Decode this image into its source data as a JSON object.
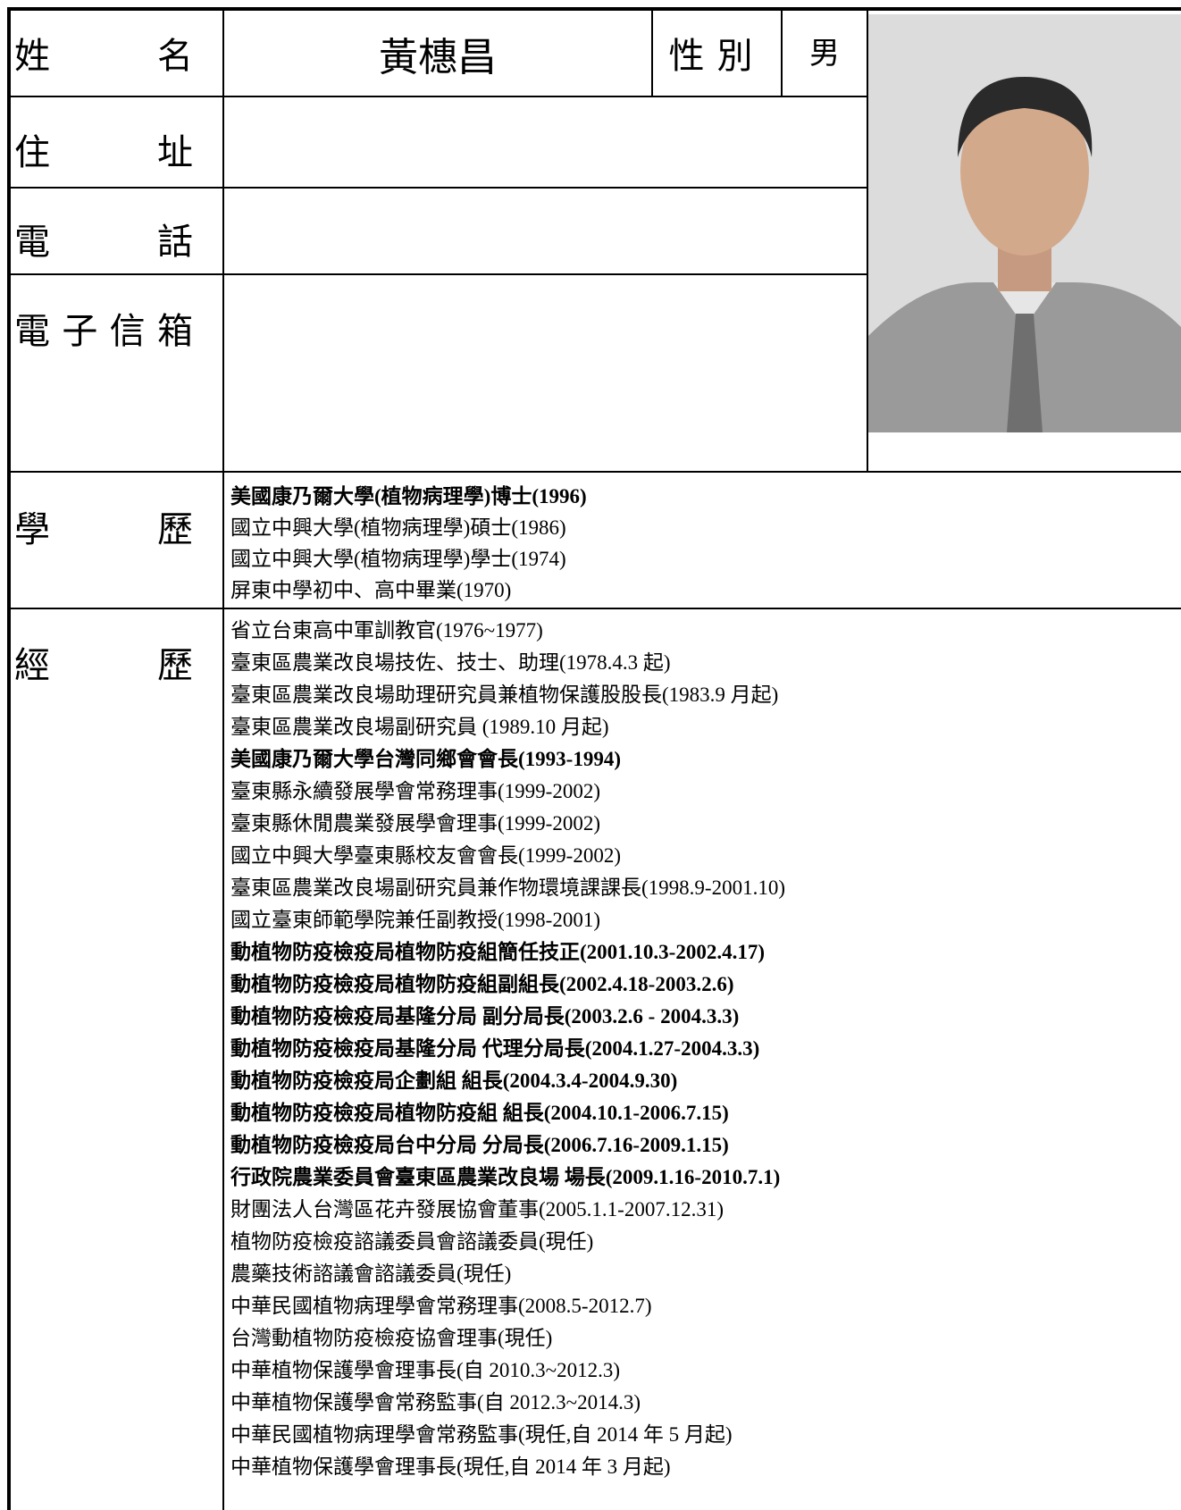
{
  "header": {
    "name_label": "姓名",
    "name": "黃橞昌",
    "gender_label": "性別",
    "gender": "男"
  },
  "contact": {
    "address_label": "住址",
    "phone_label": "電話",
    "email_label": "電子信箱"
  },
  "education": {
    "label": "學歷",
    "items": [
      {
        "text": "美國康乃爾大學(植物病理學)博士(1996)",
        "bold": true
      },
      {
        "text": "國立中興大學(植物病理學)碩士(1986)",
        "bold": false
      },
      {
        "text": "國立中興大學(植物病理學)學士(1974)",
        "bold": false
      },
      {
        "text": "屏東中學初中、高中畢業(1970)",
        "bold": false
      }
    ]
  },
  "experience": {
    "label": "經歷",
    "items": [
      {
        "text": "省立台東高中軍訓教官(1976~1977)",
        "bold": false
      },
      {
        "text": "臺東區農業改良場技佐、技士、助理(1978.4.3 起)",
        "bold": false
      },
      {
        "text": "臺東區農業改良場助理研究員兼植物保護股股長(1983.9 月起)",
        "bold": false
      },
      {
        "text": "臺東區農業改良場副研究員 (1989.10 月起)",
        "bold": false
      },
      {
        "text": "美國康乃爾大學台灣同鄉會會長(1993-1994)",
        "bold": true
      },
      {
        "text": "臺東縣永續發展學會常務理事(1999-2002)",
        "bold": false
      },
      {
        "text": "臺東縣休閒農業發展學會理事(1999-2002)",
        "bold": false
      },
      {
        "text": "國立中興大學臺東縣校友會會長(1999-2002)",
        "bold": false
      },
      {
        "text": "臺東區農業改良場副研究員兼作物環境課課長(1998.9-2001.10)",
        "bold": false
      },
      {
        "text": "國立臺東師範學院兼任副教授(1998-2001)",
        "bold": false
      },
      {
        "text": "動植物防疫檢疫局植物防疫組簡任技正(2001.10.3-2002.4.17)",
        "bold": true
      },
      {
        "text": "動植物防疫檢疫局植物防疫組副組長(2002.4.18-2003.2.6)",
        "bold": true
      },
      {
        "text": "動植物防疫檢疫局基隆分局 副分局長(2003.2.6 - 2004.3.3)",
        "bold": true
      },
      {
        "text": "動植物防疫檢疫局基隆分局 代理分局長(2004.1.27-2004.3.3)",
        "bold": true
      },
      {
        "text": "動植物防疫檢疫局企劃組 組長(2004.3.4-2004.9.30)",
        "bold": true
      },
      {
        "text": "動植物防疫檢疫局植物防疫組 組長(2004.10.1-2006.7.15)",
        "bold": true
      },
      {
        "text": "動植物防疫檢疫局台中分局 分局長(2006.7.16-2009.1.15)",
        "bold": true
      },
      {
        "text": "行政院農業委員會臺東區農業改良場 場長(2009.1.16-2010.7.1)",
        "bold": true
      },
      {
        "text": "財團法人台灣區花卉發展協會董事(2005.1.1-2007.12.31)",
        "bold": false
      },
      {
        "text": "植物防疫檢疫諮議委員會諮議委員(現任)",
        "bold": false
      },
      {
        "text": "農藥技術諮議會諮議委員(現任)",
        "bold": false
      },
      {
        "text": "中華民國植物病理學會常務理事(2008.5-2012.7)",
        "bold": false
      },
      {
        "text": "台灣動植物防疫檢疫協會理事(現任)",
        "bold": false
      },
      {
        "text": "中華植物保護學會理事長(自 2010.3~2012.3)",
        "bold": false
      },
      {
        "text": "中華植物保護學會常務監事(自 2012.3~2014.3)",
        "bold": false
      },
      {
        "text": "中華民國植物病理學會常務監事(現任,自 2014 年 5 月起)",
        "bold": false
      },
      {
        "text": "中華植物保護學會理事長(現任,自 2014 年 3 月起)",
        "bold": false
      }
    ]
  }
}
